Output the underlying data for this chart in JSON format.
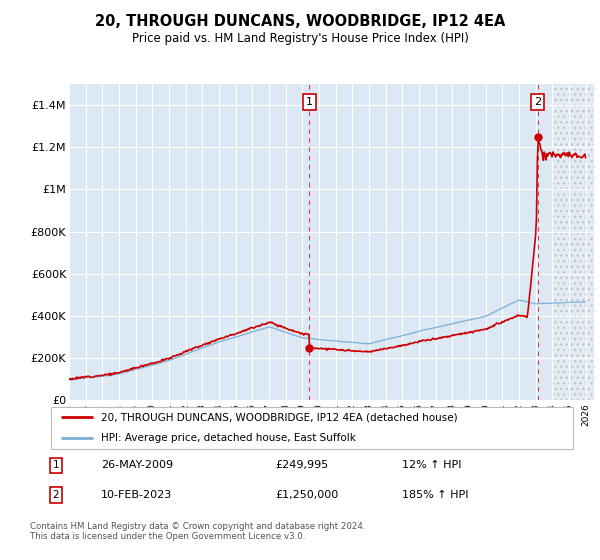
{
  "title": "20, THROUGH DUNCANS, WOODBRIDGE, IP12 4EA",
  "subtitle": "Price paid vs. HM Land Registry's House Price Index (HPI)",
  "xlim": [
    1995,
    2026.5
  ],
  "ylim": [
    0,
    1500000
  ],
  "yticks": [
    0,
    200000,
    400000,
    600000,
    800000,
    1000000,
    1200000,
    1400000
  ],
  "ytick_labels": [
    "£0",
    "£200K",
    "£400K",
    "£600K",
    "£800K",
    "£1M",
    "£1.2M",
    "£1.4M"
  ],
  "background_color": "#dce9f5",
  "hpi_color": "#7aafd4",
  "price_color": "#cc0000",
  "sale1_x": 2009.42,
  "sale1_y": 249995,
  "sale2_x": 2023.12,
  "sale2_y": 1250000,
  "sale1_label": "1",
  "sale2_label": "2",
  "sale1_date": "26-MAY-2009",
  "sale1_price": "£249,995",
  "sale1_hpi": "12% ↑ HPI",
  "sale2_date": "10-FEB-2023",
  "sale2_price": "£1,250,000",
  "sale2_hpi": "185% ↑ HPI",
  "legend_line1": "20, THROUGH DUNCANS, WOODBRIDGE, IP12 4EA (detached house)",
  "legend_line2": "HPI: Average price, detached house, East Suffolk",
  "footer": "Contains HM Land Registry data © Crown copyright and database right 2024.\nThis data is licensed under the Open Government Licence v3.0.",
  "hatch_start": 2024.0
}
